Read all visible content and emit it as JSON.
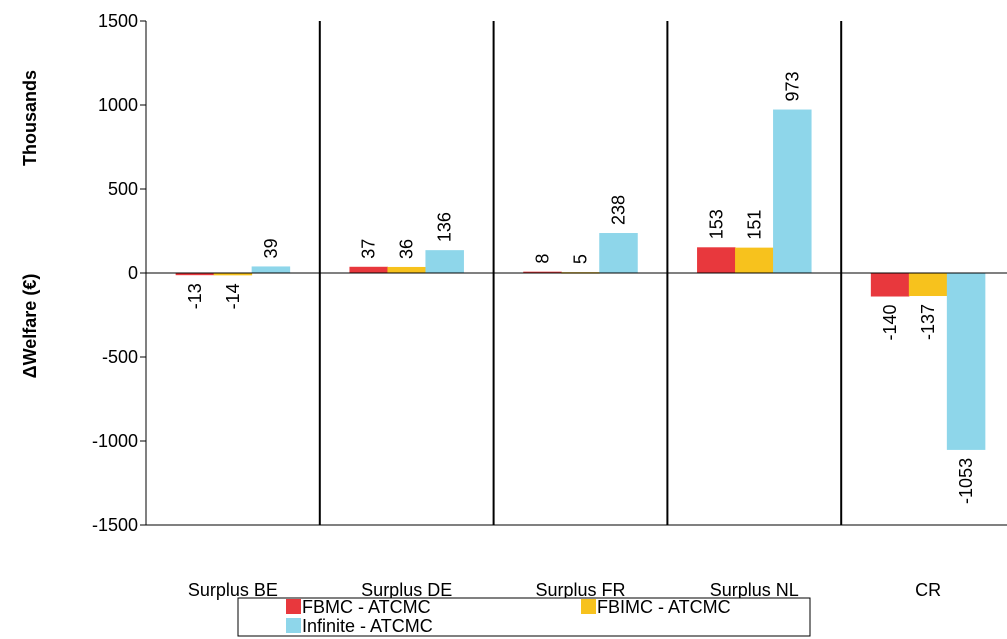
{
  "chart_data": {
    "type": "bar",
    "categories": [
      "Surplus BE",
      "Surplus DE",
      "Surplus FR",
      "Surplus NL",
      "CR"
    ],
    "series": [
      {
        "name": "FBMC - ATCMC",
        "color": "#e8383d",
        "values": [
          -13,
          37,
          8,
          153,
          -140
        ]
      },
      {
        "name": "FBIMC - ATCMC",
        "color": "#f7c21d",
        "values": [
          -14,
          36,
          5,
          151,
          -137
        ]
      },
      {
        "name": "Infinite - ATCMC",
        "color": "#8ed6ea",
        "values": [
          39,
          136,
          238,
          973,
          -1053
        ]
      }
    ],
    "ylabel": "ΔWelfare (€)",
    "yunit": "Thousands",
    "ylim": [
      -1500,
      1500
    ],
    "yticks": [
      -1500,
      -1000,
      -500,
      0,
      500,
      1000,
      1500
    ],
    "legend_position": "bottom",
    "grid": false
  }
}
